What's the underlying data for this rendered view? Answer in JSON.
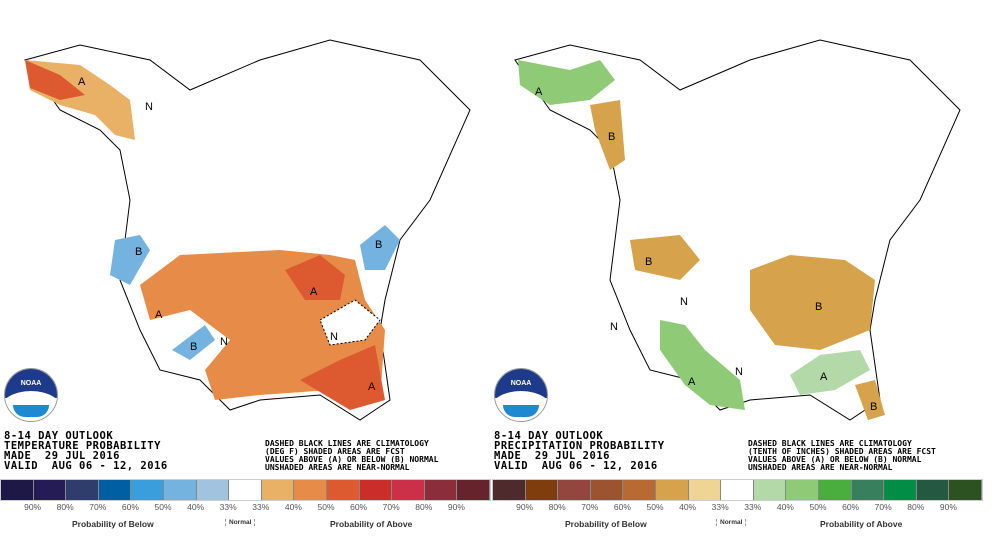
{
  "temperature": {
    "title_lines": [
      "8-14 DAY OUTLOOK",
      "TEMPERATURE PROBABILITY",
      "MADE  29 JUL 2016",
      "VALID  AUG 06 - 12, 2016"
    ],
    "note_lines": [
      "DASHED BLACK LINES ARE CLIMATOLOGY",
      "(DEG F) SHADED AREAS ARE FCST",
      "VALUES ABOVE (A) OR BELOW (B) NORMAL",
      "UNSHADED AREAS ARE NEAR-NORMAL"
    ],
    "legend_colors": [
      "#1e1846",
      "#251c55",
      "#2e3d6c",
      "#005fa0",
      "#3a9ddc",
      "#74b3e0",
      "#a2c3e0",
      "#ffffff",
      "#e8b165",
      "#e68c48",
      "#dd5a30",
      "#cb2e2a",
      "#cc2f48",
      "#8b2d3b",
      "#66232b"
    ],
    "legend_ticks": [
      "90%",
      "80%",
      "70%",
      "60%",
      "50%",
      "40%",
      "33%",
      "33%",
      "40%",
      "50%",
      "60%",
      "70%",
      "80%",
      "90%"
    ],
    "below_label": "Probability of Below",
    "normal_label": "Normal",
    "above_label": "Probability of Above",
    "map_labels": {
      "a1": "A",
      "a2": "A",
      "a3": "A",
      "a4": "A",
      "b1": "B",
      "b2": "B",
      "b3": "B",
      "n1": "N",
      "n2": "N",
      "n3": "N"
    }
  },
  "precipitation": {
    "title_lines": [
      "8-14 DAY OUTLOOK",
      "PRECIPITATION PROBABILITY",
      "MADE  29 JUL 2016",
      "VALID  AUG 06 - 12, 2016"
    ],
    "note_lines": [
      "DASHED BLACK LINES ARE CLIMATOLOGY",
      "(TENTH OF INCHES) SHADED AREAS ARE FCST",
      "VALUES ABOVE (A) OR BELOW (B) NORMAL",
      "UNSHADED AREAS ARE NEAR-NORMAL"
    ],
    "legend_colors": [
      "#4e2a2c",
      "#7f3d0e",
      "#93463d",
      "#9c5430",
      "#b96a33",
      "#d6a24c",
      "#eed596",
      "#ffffff",
      "#b4d9a8",
      "#8fcb77",
      "#4aae3e",
      "#377f5d",
      "#018d45",
      "#245840",
      "#2b5220"
    ],
    "legend_ticks": [
      "90%",
      "80%",
      "70%",
      "60%",
      "50%",
      "40%",
      "33%",
      "33%",
      "40%",
      "50%",
      "60%",
      "70%",
      "80%",
      "90%"
    ],
    "below_label": "Probability of Below",
    "normal_label": "Normal",
    "above_label": "Probability of Above",
    "map_labels": {
      "a1": "A",
      "a2": "A",
      "a3": "A",
      "b1": "B",
      "b2": "B",
      "b3": "B",
      "b4": "B",
      "n1": "N",
      "n2": "N",
      "n3": "N"
    }
  },
  "logo_text": "NOAA"
}
